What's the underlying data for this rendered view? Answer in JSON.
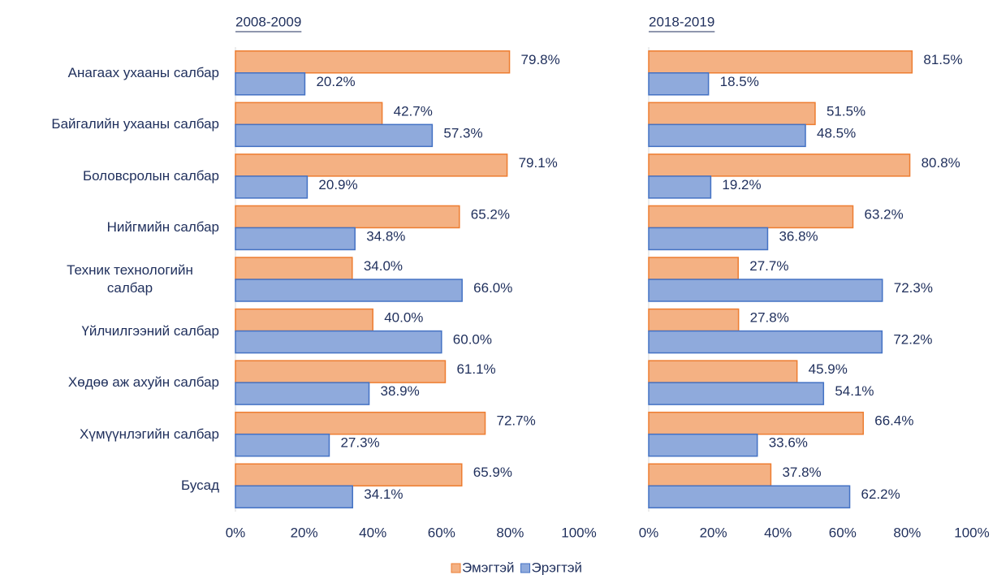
{
  "chart_data": [
    {
      "type": "hbar",
      "title": "2008-2009",
      "categories": [
        "Анагаах ухааны салбар",
        "Байгалийн ухааны салбар",
        "Боловсролын салбар",
        "Нийгмийн салбар",
        "Техник технологийн салбар",
        "Үйлчилгээний салбар",
        "Хөдөө аж ахуйн салбар",
        "Хүмүүнлэгийн салбар",
        "Бусад"
      ],
      "series": [
        {
          "name": "Эмэгтэй",
          "color": "#f4b183",
          "values": [
            79.8,
            42.7,
            79.1,
            65.2,
            34.0,
            40.0,
            61.1,
            72.7,
            65.9
          ],
          "value_labels": [
            "79.8%",
            "42.7%",
            "79.1%",
            "65.2%",
            "34.0%",
            "40.0%",
            "61.1%",
            "72.7%",
            "65.9%"
          ]
        },
        {
          "name": "Эрэгтэй",
          "color": "#8faadc",
          "values": [
            20.2,
            57.3,
            20.9,
            34.8,
            66.0,
            60.0,
            38.9,
            27.3,
            34.1
          ],
          "value_labels": [
            "20.2%",
            "57.3%",
            "20.9%",
            "34.8%",
            "66.0%",
            "60.0%",
            "38.9%",
            "27.3%",
            "34.1%"
          ]
        }
      ],
      "xlim": [
        0,
        100
      ],
      "xticks": [
        {
          "value": 0,
          "label": "0%"
        },
        {
          "value": 20,
          "label": "20%"
        },
        {
          "value": 40,
          "label": "40%"
        },
        {
          "value": 60,
          "label": "60%"
        },
        {
          "value": 80,
          "label": "80%"
        },
        {
          "value": 100,
          "label": "100%"
        }
      ]
    },
    {
      "type": "hbar",
      "title": "2018-2019",
      "series": [
        {
          "name": "Эмэгтэй",
          "color": "#f4b183",
          "values": [
            81.5,
            51.5,
            80.8,
            63.2,
            27.7,
            27.8,
            45.9,
            66.4,
            37.8
          ],
          "value_labels": [
            "81.5%",
            "51.5%",
            "80.8%",
            "63.2%",
            "27.7%",
            "27.8%",
            "45.9%",
            "66.4%",
            "37.8%"
          ]
        },
        {
          "name": "Эрэгтэй",
          "color": "#8faadc",
          "values": [
            18.5,
            48.5,
            19.2,
            36.8,
            72.3,
            72.2,
            54.1,
            33.6,
            62.2
          ],
          "value_labels": [
            "18.5%",
            "48.5%",
            "19.2%",
            "36.8%",
            "72.3%",
            "72.2%",
            "54.1%",
            "33.6%",
            "62.2%"
          ]
        }
      ],
      "xlim": [
        0,
        100
      ],
      "xticks": [
        {
          "value": 0,
          "label": "0%"
        },
        {
          "value": 20,
          "label": "20%"
        },
        {
          "value": 40,
          "label": "40%"
        },
        {
          "value": 60,
          "label": "60%"
        },
        {
          "value": 80,
          "label": "80%"
        },
        {
          "value": 100,
          "label": "100%"
        }
      ]
    }
  ]
}
